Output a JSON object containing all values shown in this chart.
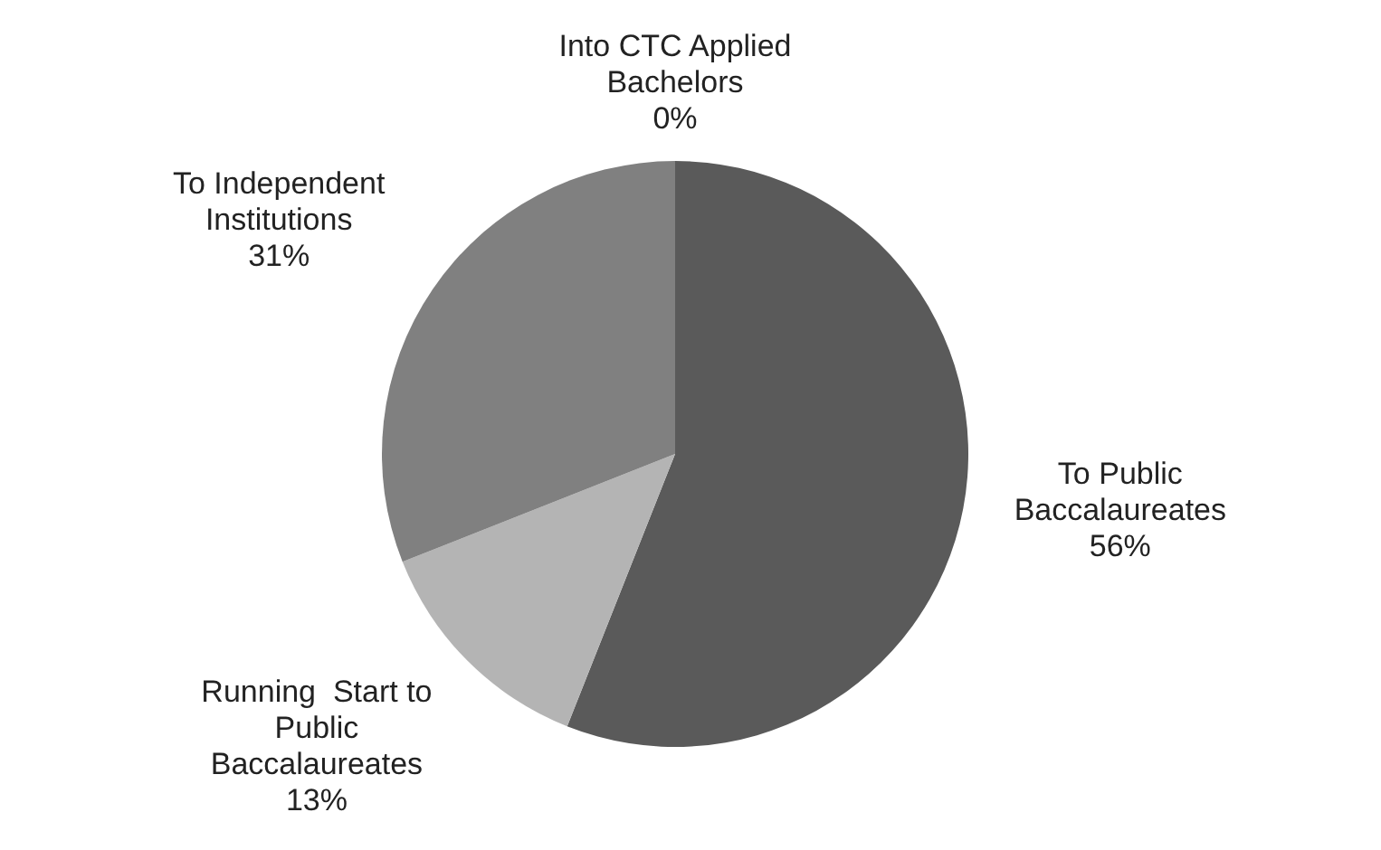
{
  "chart_data": {
    "type": "pie",
    "categories": [
      "To Public Baccalaureates",
      "Running  Start to Public Baccalaureates",
      "To Independent Institutions",
      "Into CTC Applied Bachelors"
    ],
    "values": [
      56,
      13,
      31,
      0
    ],
    "value_labels": [
      "56%",
      "13%",
      "31%",
      "0%"
    ],
    "colors": [
      "#5a5a5a",
      "#b4b4b4",
      "#808080",
      "#3c3c3c"
    ],
    "legend": false
  }
}
